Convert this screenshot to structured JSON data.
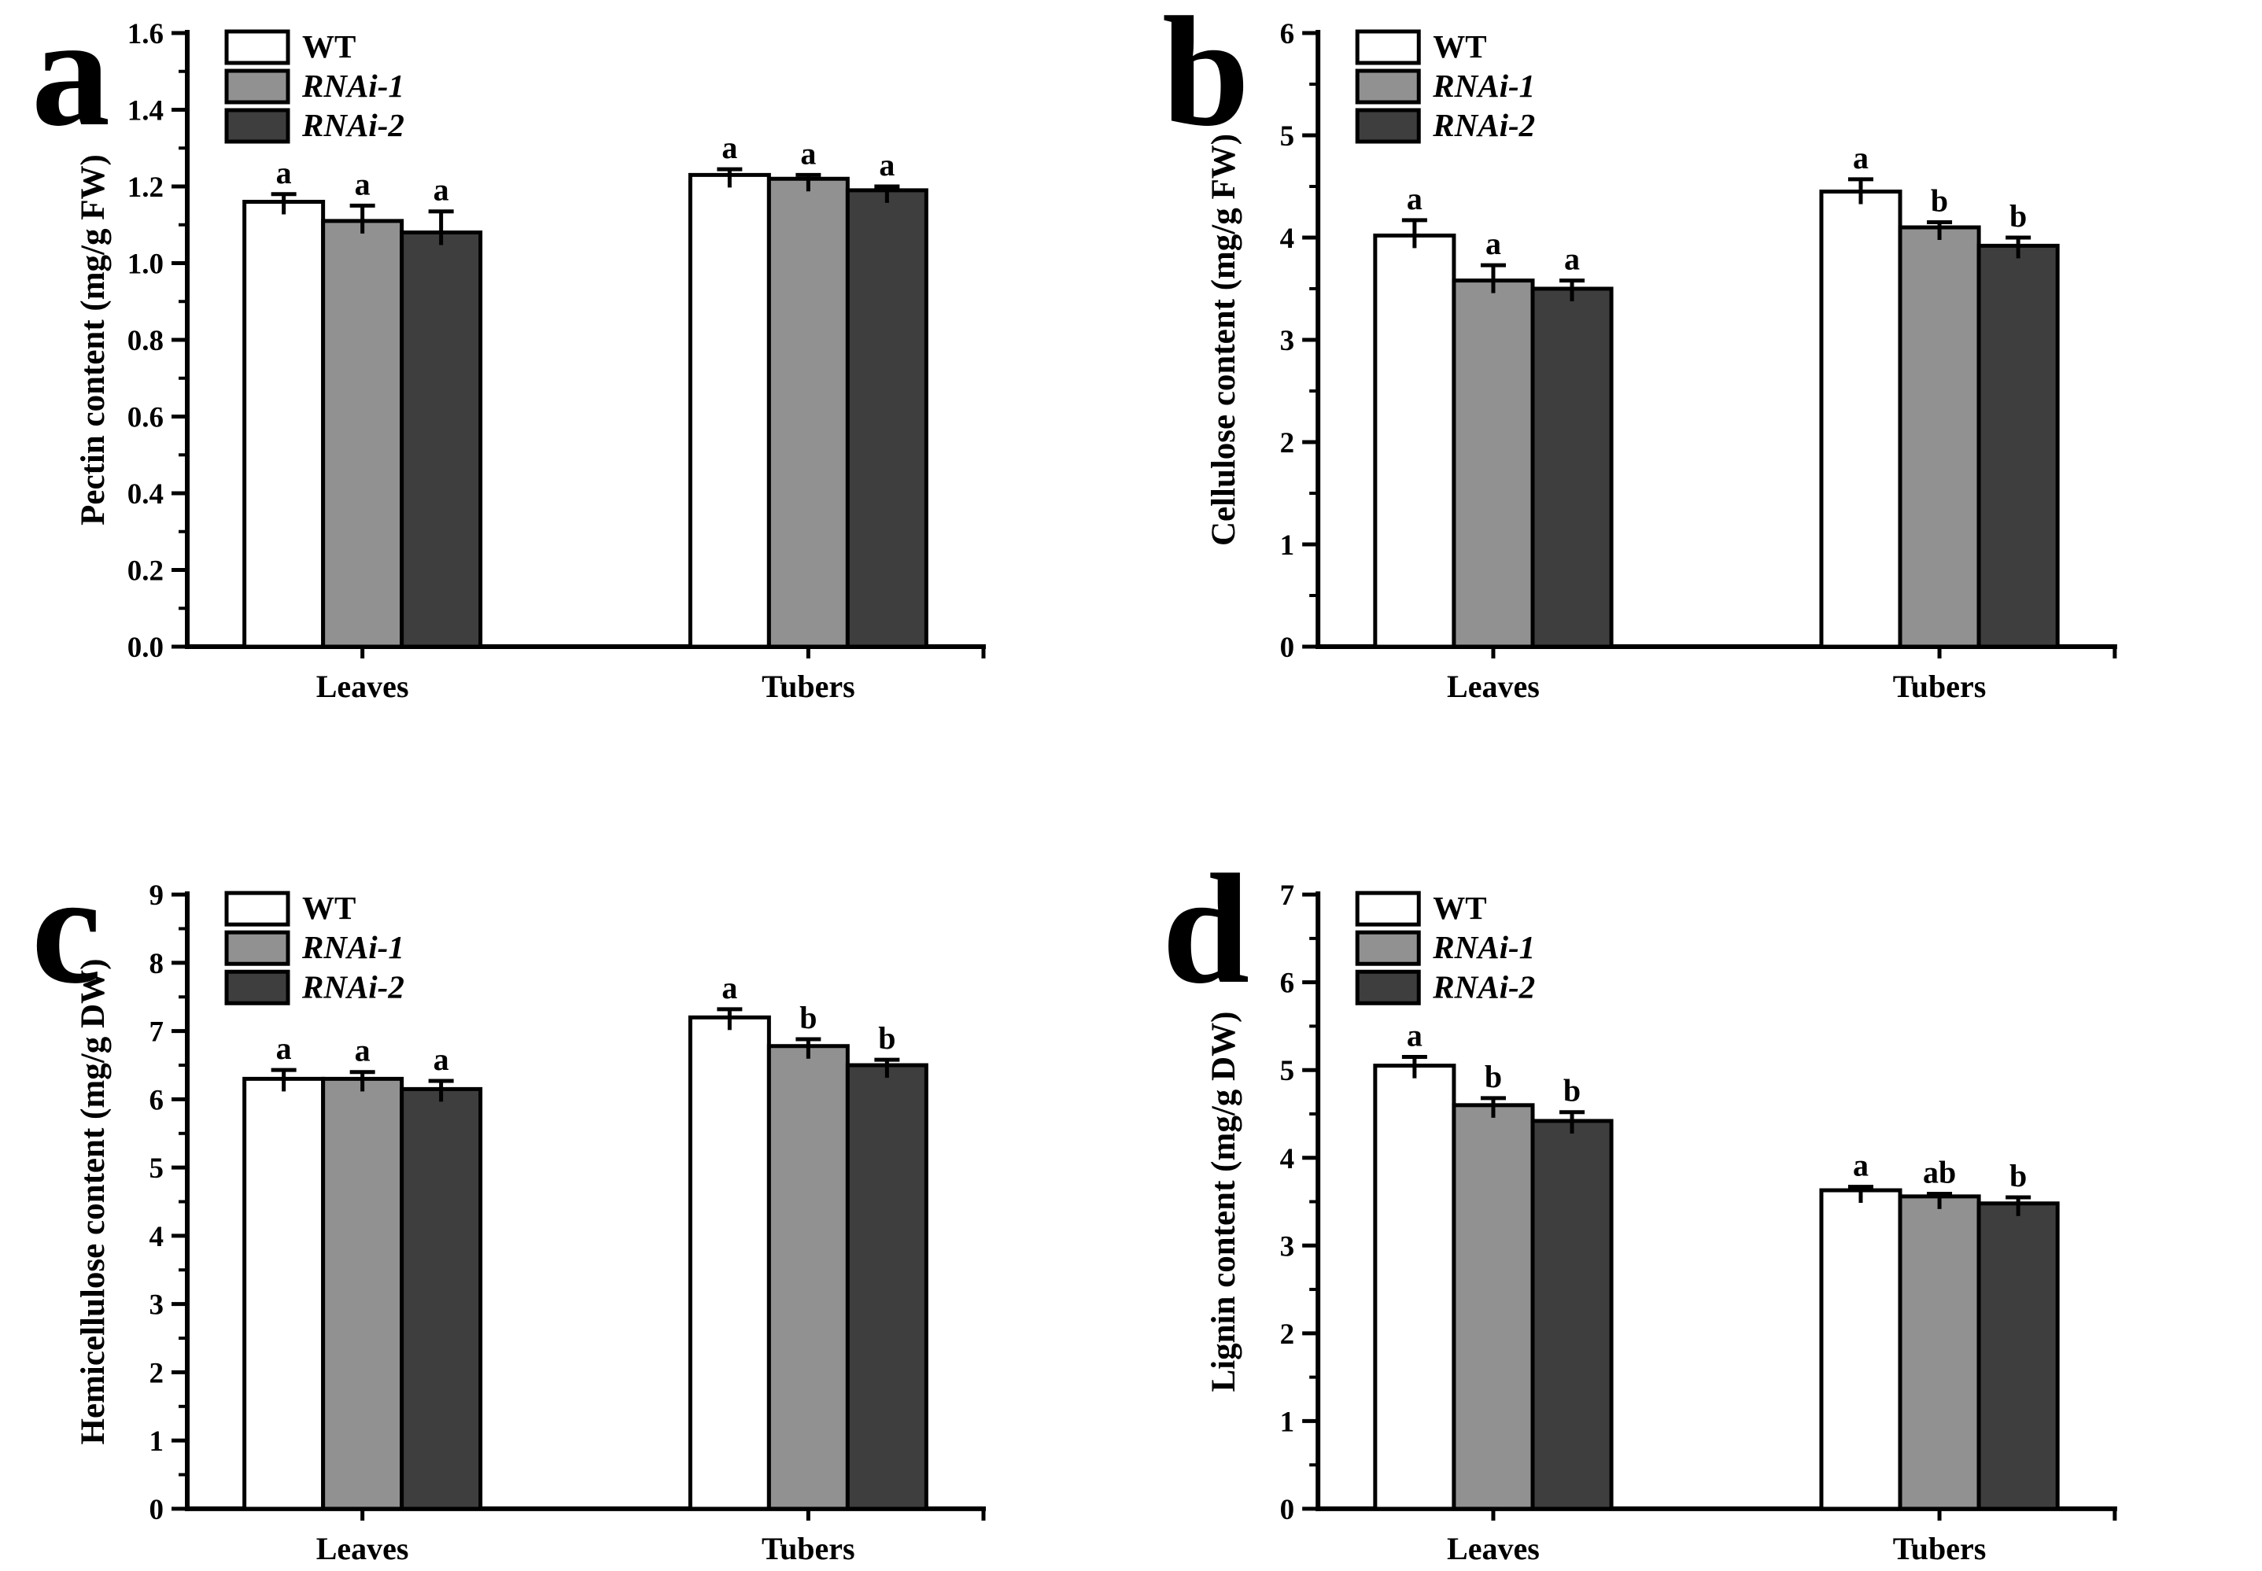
{
  "legend": {
    "items": [
      {
        "label": "WT",
        "italic": false
      },
      {
        "label": "RNAi-1",
        "italic": true
      },
      {
        "label": "RNAi-2",
        "italic": true
      }
    ]
  },
  "colors": {
    "WT": "#ffffff",
    "RNAi-1": "#919191",
    "RNAi-2": "#3e3e3e",
    "axis": "#000000",
    "background": "#ffffff"
  },
  "chart_data": [
    {
      "type": "bar",
      "panel_label": "a",
      "ylabel": "Pectin content (mg/g FW)",
      "xlabel": "",
      "ylim": [
        0,
        1.6
      ],
      "ytick_step": 0.2,
      "yminor_step": 0.1,
      "ytick_decimals": 1,
      "legend_position": "top-left",
      "grid": false,
      "categories": [
        "Leaves",
        "Tubers"
      ],
      "series": [
        {
          "name": "WT",
          "values": [
            1.16,
            1.23
          ],
          "errors": [
            0.02,
            0.015
          ],
          "sig": [
            "a",
            "a"
          ]
        },
        {
          "name": "RNAi-1",
          "values": [
            1.11,
            1.22
          ],
          "errors": [
            0.04,
            0.01
          ],
          "sig": [
            "a",
            "a"
          ]
        },
        {
          "name": "RNAi-2",
          "values": [
            1.08,
            1.19
          ],
          "errors": [
            0.055,
            0.01
          ],
          "sig": [
            "a",
            "a"
          ]
        }
      ]
    },
    {
      "type": "bar",
      "panel_label": "b",
      "ylabel": "Cellulose content (mg/g FW)",
      "xlabel": "",
      "ylim": [
        0,
        6
      ],
      "ytick_step": 1,
      "yminor_step": 0.5,
      "ytick_decimals": 0,
      "legend_position": "top-left",
      "grid": false,
      "categories": [
        "Leaves",
        "Tubers"
      ],
      "series": [
        {
          "name": "WT",
          "values": [
            4.02,
            4.45
          ],
          "errors": [
            0.15,
            0.12
          ],
          "sig": [
            "a",
            "a"
          ]
        },
        {
          "name": "RNAi-1",
          "values": [
            3.58,
            4.1
          ],
          "errors": [
            0.15,
            0.05
          ],
          "sig": [
            "a",
            "b"
          ]
        },
        {
          "name": "RNAi-2",
          "values": [
            3.5,
            3.92
          ],
          "errors": [
            0.08,
            0.08
          ],
          "sig": [
            "a",
            "b"
          ]
        }
      ]
    },
    {
      "type": "bar",
      "panel_label": "c",
      "ylabel": "Hemicellulose content (mg/g DW)",
      "xlabel": "",
      "ylim": [
        0,
        9
      ],
      "ytick_step": 1,
      "yminor_step": 0.5,
      "ytick_decimals": 0,
      "legend_position": "top-left",
      "grid": false,
      "categories": [
        "Leaves",
        "Tubers"
      ],
      "series": [
        {
          "name": "WT",
          "values": [
            6.3,
            7.2
          ],
          "errors": [
            0.13,
            0.12
          ],
          "sig": [
            "a",
            "a"
          ]
        },
        {
          "name": "RNAi-1",
          "values": [
            6.3,
            6.78
          ],
          "errors": [
            0.1,
            0.1
          ],
          "sig": [
            "a",
            "b"
          ]
        },
        {
          "name": "RNAi-2",
          "values": [
            6.15,
            6.5
          ],
          "errors": [
            0.12,
            0.08
          ],
          "sig": [
            "a",
            "b"
          ]
        }
      ]
    },
    {
      "type": "bar",
      "panel_label": "d",
      "ylabel": "Lignin content (mg/g DW)",
      "xlabel": "",
      "ylim": [
        0,
        7
      ],
      "ytick_step": 1,
      "yminor_step": 0.5,
      "ytick_decimals": 0,
      "legend_position": "top-left",
      "grid": false,
      "categories": [
        "Leaves",
        "Tubers"
      ],
      "series": [
        {
          "name": "WT",
          "values": [
            5.05,
            3.63
          ],
          "errors": [
            0.1,
            0.04
          ],
          "sig": [
            "a",
            "a"
          ]
        },
        {
          "name": "RNAi-1",
          "values": [
            4.6,
            3.56
          ],
          "errors": [
            0.08,
            0.03
          ],
          "sig": [
            "b",
            "ab"
          ]
        },
        {
          "name": "RNAi-2",
          "values": [
            4.42,
            3.48
          ],
          "errors": [
            0.1,
            0.07
          ],
          "sig": [
            "b",
            "b"
          ]
        }
      ]
    }
  ]
}
